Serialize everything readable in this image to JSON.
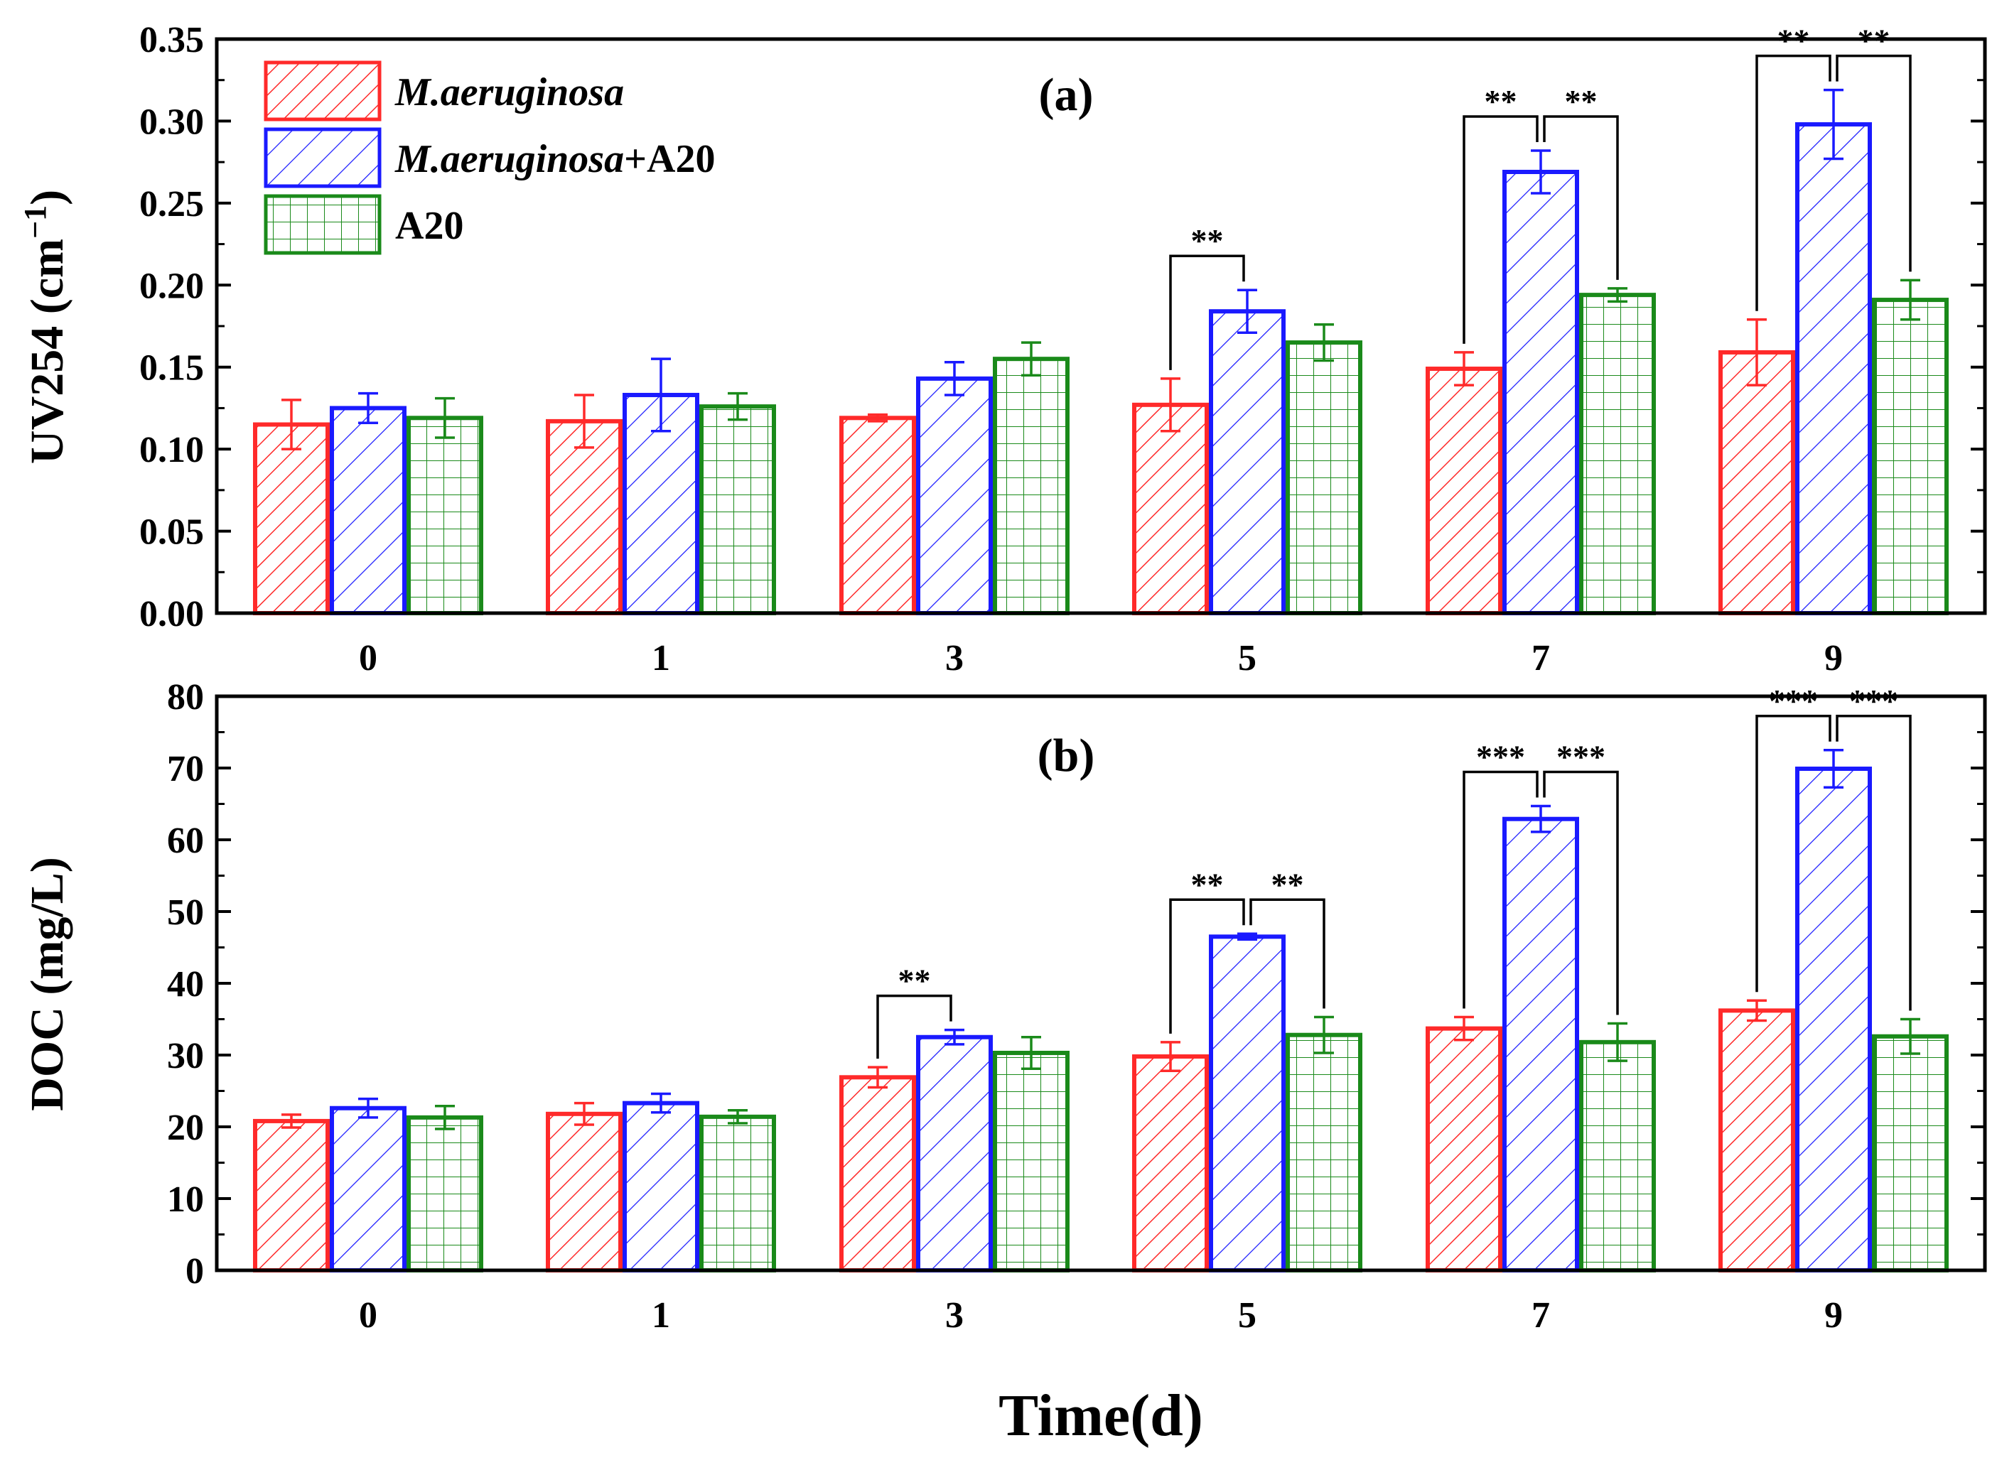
{
  "chart_data": [
    {
      "type": "bar",
      "panel_label": "(a)",
      "ylabel": "UV254 (cm",
      "ylabel_sup": "−1",
      "ylabel_close": ")",
      "xlabel": "",
      "ylim": [
        0,
        0.35
      ],
      "yticks": [
        "0.00",
        "0.05",
        "0.10",
        "0.15",
        "0.20",
        "0.25",
        "0.30",
        "0.35"
      ],
      "categories": [
        "0",
        "1",
        "3",
        "5",
        "7",
        "9"
      ],
      "series": [
        {
          "name": "M.aeruginosa",
          "values": [
            0.115,
            0.117,
            0.119,
            0.127,
            0.149,
            0.159
          ],
          "errors": [
            0.015,
            0.016,
            0.002,
            0.016,
            0.01,
            0.02
          ]
        },
        {
          "name": "M.aeruginosa+A20",
          "values": [
            0.125,
            0.133,
            0.143,
            0.184,
            0.269,
            0.298
          ],
          "errors": [
            0.009,
            0.022,
            0.01,
            0.013,
            0.013,
            0.021
          ]
        },
        {
          "name": "A20",
          "values": [
            0.119,
            0.126,
            0.155,
            0.165,
            0.194,
            0.191
          ],
          "errors": [
            0.012,
            0.008,
            0.01,
            0.011,
            0.004,
            0.012
          ]
        }
      ],
      "significance": [
        {
          "category": "5",
          "from": 0,
          "to": 1,
          "label": "**"
        },
        {
          "category": "7",
          "from": 0,
          "to": 1,
          "label": "**"
        },
        {
          "category": "7",
          "from": 1,
          "to": 2,
          "label": "**"
        },
        {
          "category": "9",
          "from": 0,
          "to": 1,
          "label": "**"
        },
        {
          "category": "9",
          "from": 1,
          "to": 2,
          "label": "**"
        }
      ]
    },
    {
      "type": "bar",
      "panel_label": "(b)",
      "ylabel": "DOC (mg/L)",
      "xlabel": "Time(d)",
      "ylim": [
        0,
        80
      ],
      "yticks": [
        "0",
        "10",
        "20",
        "30",
        "40",
        "50",
        "60",
        "70",
        "80"
      ],
      "categories": [
        "0",
        "1",
        "3",
        "5",
        "7",
        "9"
      ],
      "series": [
        {
          "name": "M.aeruginosa",
          "values": [
            20.8,
            21.8,
            26.9,
            29.8,
            33.7,
            36.2
          ],
          "errors": [
            0.9,
            1.5,
            1.4,
            2.0,
            1.6,
            1.4
          ]
        },
        {
          "name": "M.aeruginosa+A20",
          "values": [
            22.6,
            23.3,
            32.5,
            46.5,
            62.9,
            69.9
          ],
          "errors": [
            1.3,
            1.3,
            1.0,
            0.4,
            1.8,
            2.6
          ]
        },
        {
          "name": "A20",
          "values": [
            21.3,
            21.4,
            30.3,
            32.8,
            31.8,
            32.6
          ],
          "errors": [
            1.6,
            0.9,
            2.2,
            2.5,
            2.6,
            2.4
          ]
        }
      ],
      "significance": [
        {
          "category": "3",
          "from": 0,
          "to": 1,
          "label": "**"
        },
        {
          "category": "5",
          "from": 0,
          "to": 1,
          "label": "**"
        },
        {
          "category": "5",
          "from": 1,
          "to": 2,
          "label": "**"
        },
        {
          "category": "7",
          "from": 0,
          "to": 1,
          "label": "***"
        },
        {
          "category": "7",
          "from": 1,
          "to": 2,
          "label": "***"
        },
        {
          "category": "9",
          "from": 0,
          "to": 1,
          "label": "***"
        },
        {
          "category": "9",
          "from": 1,
          "to": 2,
          "label": "***"
        }
      ]
    }
  ],
  "legend": {
    "entries": [
      {
        "name": "M.aeruginosa",
        "italic_part": "M.aeruginosa",
        "plain_part": ""
      },
      {
        "name": "M.aeruginosa+A20",
        "italic_part": "M.aeruginosa",
        "plain_part": "+A20"
      },
      {
        "name": "A20",
        "italic_part": "",
        "plain_part": "A20"
      }
    ],
    "position": "top-left"
  },
  "colors": {
    "m_aeruginosa": "#ff2a2a",
    "m_aeruginosa_a20": "#1a1aff",
    "a20": "#1a8a1a",
    "axis": "#000000"
  }
}
